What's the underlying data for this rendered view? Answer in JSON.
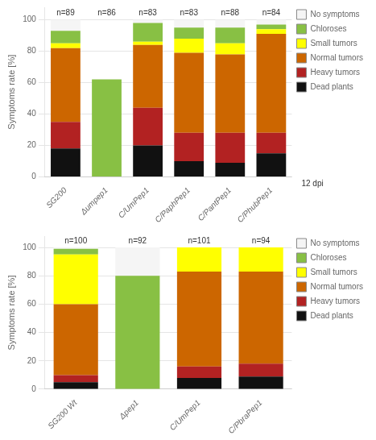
{
  "chart_data": [
    {
      "type": "bar",
      "stacked": true,
      "categories": [
        "SG200",
        "Δumpep1",
        "C/UmPep1",
        "C/PaphPep1",
        "C/PantPep1",
        "C/PhubPep1"
      ],
      "series": [
        {
          "name": "Dead plants",
          "color": "#111111",
          "values": [
            18,
            0,
            20,
            10,
            9,
            15
          ]
        },
        {
          "name": "Heavy tumors",
          "color": "#b22222",
          "values": [
            17,
            0,
            24,
            18,
            19,
            13
          ]
        },
        {
          "name": "Normal tumors",
          "color": "#cc6600",
          "values": [
            47,
            0,
            40,
            51,
            50,
            63
          ]
        },
        {
          "name": "Small tumors",
          "color": "#ffff00",
          "values": [
            3,
            0,
            2,
            9,
            7,
            3
          ]
        },
        {
          "name": "Chloroses",
          "color": "#88c044",
          "values": [
            8,
            62,
            12,
            7,
            10,
            3
          ]
        },
        {
          "name": "No symptoms",
          "color": "#f5f5f5",
          "values": [
            7,
            0,
            2,
            5,
            5,
            3
          ]
        }
      ],
      "ylabel": "Symptoms rate [%]",
      "ylim": [
        0,
        108
      ],
      "yticks": [
        0,
        20,
        40,
        60,
        80,
        100
      ],
      "grid": "y",
      "legend": "right",
      "annotations": [
        {
          "text": "n=89",
          "x": "SG200",
          "y": 101
        },
        {
          "text": "n=86",
          "x": "Δumpep1",
          "y": 101
        },
        {
          "text": "n=83",
          "x": "C/UmPep1",
          "y": 101
        },
        {
          "text": "n=83",
          "x": "C/PaphPep1",
          "y": 101
        },
        {
          "text": "n=88",
          "x": "C/PantPep1",
          "y": 101
        },
        {
          "text": "n=84",
          "x": "C/PhubPep1",
          "y": 101
        },
        {
          "text": "12 dpi"
        }
      ]
    },
    {
      "type": "bar",
      "stacked": true,
      "categories": [
        "SG200 Wt",
        "Δpep1",
        "C/UmPep1",
        "C/PbraPep1"
      ],
      "series": [
        {
          "name": "Dead plants",
          "color": "#111111",
          "values": [
            5,
            0,
            8,
            9
          ]
        },
        {
          "name": "Heavy tumors",
          "color": "#b22222",
          "values": [
            5,
            0,
            8,
            9
          ]
        },
        {
          "name": "Normal tumors",
          "color": "#cc6600",
          "values": [
            50,
            0,
            67,
            65
          ]
        },
        {
          "name": "Small tumors",
          "color": "#ffff00",
          "values": [
            35,
            0,
            17,
            17
          ]
        },
        {
          "name": "Chloroses",
          "color": "#88c044",
          "values": [
            4,
            80,
            0,
            0
          ]
        },
        {
          "name": "No symptoms",
          "color": "#f5f5f5",
          "values": [
            1,
            20,
            0,
            0
          ]
        }
      ],
      "ylabel": "Symptoms rate [%]",
      "ylim": [
        0,
        108
      ],
      "yticks": [
        0,
        20,
        40,
        60,
        80,
        100
      ],
      "grid": "y",
      "legend": "right",
      "annotations": [
        {
          "text": "n=100",
          "x": "SG200 Wt",
          "y": 101
        },
        {
          "text": "n=92",
          "x": "Δpep1",
          "y": 101
        },
        {
          "text": "n=101",
          "x": "C/UmPep1",
          "y": 101
        },
        {
          "text": "n=94",
          "x": "C/PbraPep1",
          "y": 101
        }
      ]
    }
  ]
}
